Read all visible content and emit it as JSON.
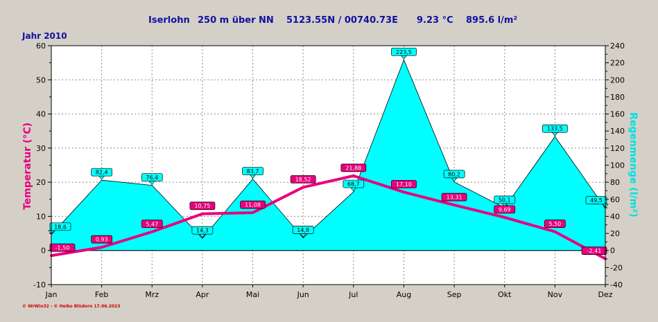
{
  "header": {
    "station": "Iserlohn",
    "altitude": "250 m über NN",
    "coords": "5123.55N / 00740.73E",
    "mean_temp": "9.23 °C",
    "total_rain": "895.6 l/m²"
  },
  "year_label": "Jahr  2010",
  "footer": "© WrWin32  -  © Heiko Blüdorn  17.06.2023",
  "colors": {
    "background": "#d4d0c8",
    "plot_bg": "#ffffff",
    "rain_fill": "#00ffff",
    "temp_line": "#e8007c",
    "header_text": "#1010a0"
  },
  "chart_data": {
    "type": "line",
    "categories": [
      "Jan",
      "Feb",
      "Mrz",
      "Apr",
      "Mai",
      "Jun",
      "Jul",
      "Aug",
      "Sep",
      "Okt",
      "Nov",
      "Dez"
    ],
    "series": [
      {
        "name": "Temperatur",
        "axis": "left",
        "type": "line",
        "values": [
          -1.5,
          0.93,
          5.47,
          10.75,
          11.08,
          18.52,
          21.88,
          17.1,
          13.31,
          9.69,
          5.5,
          -2.41
        ],
        "labels": [
          "-1,50",
          "0,93",
          "5,47",
          "10,75",
          "11,08",
          "18,52",
          "21,88",
          "17,10",
          "13,31",
          "9,69",
          "5,50",
          "-2,41"
        ]
      },
      {
        "name": "Regenmenge",
        "axis": "right",
        "type": "area",
        "values": [
          18.6,
          82.4,
          76.4,
          14.3,
          83.7,
          14.8,
          68.7,
          223.5,
          80.2,
          50.1,
          133.5,
          49.5
        ],
        "labels": [
          "18,6",
          "82,4",
          "76,4",
          "14,3",
          "83,7",
          "14,8",
          "68,7",
          "223,5",
          "80,2",
          "50,1",
          "133,5",
          "49,5"
        ]
      }
    ],
    "ylabel": "Temperatur  (°C)",
    "y2label": "Regenmenge  (l/m²)",
    "ylim": [
      -10,
      60
    ],
    "y2lim": [
      -40,
      240
    ],
    "yticks": [
      -10,
      0,
      10,
      20,
      30,
      40,
      50,
      60
    ],
    "y2ticks": [
      -40,
      -20,
      0,
      20,
      40,
      60,
      80,
      100,
      120,
      140,
      160,
      180,
      200,
      220,
      240
    ],
    "grid": true
  }
}
